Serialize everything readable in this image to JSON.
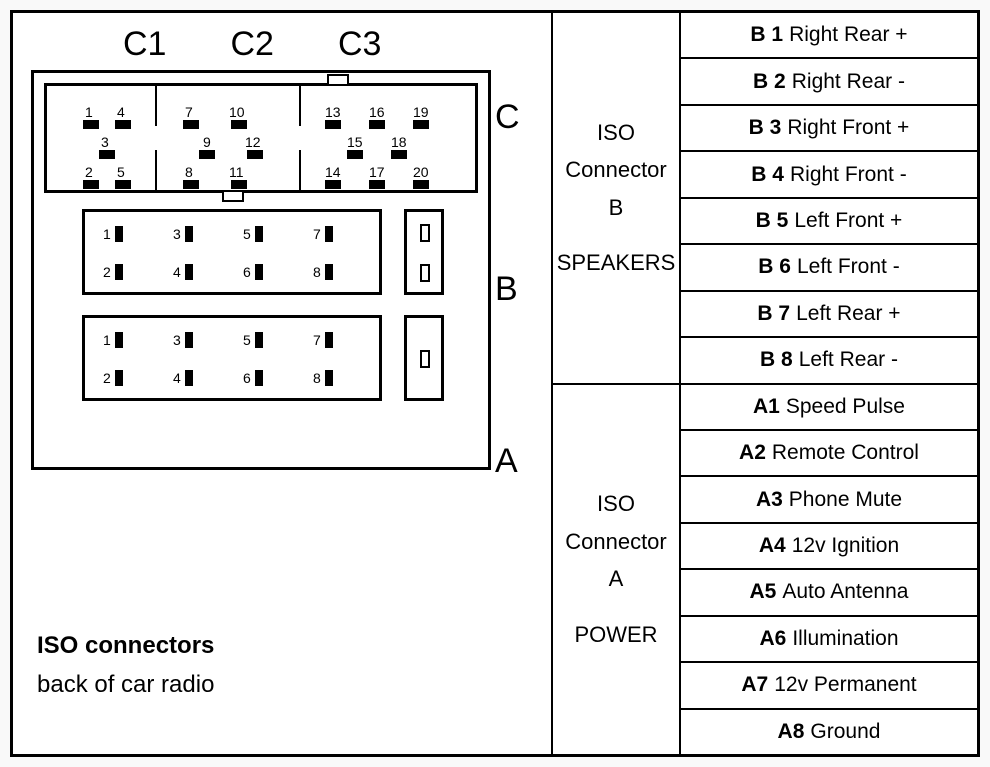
{
  "colors": {
    "background": "#ffffff",
    "line": "#000000",
    "text": "#000000"
  },
  "left": {
    "c_labels": [
      "C1",
      "C2",
      "C3"
    ],
    "side_labels": [
      "C",
      "B",
      "A"
    ],
    "footer_line1": "ISO connectors",
    "footer_line2": "back of car radio",
    "connector_c": {
      "columns": [
        {
          "group": "C1",
          "top_pins": [
            "1",
            "4"
          ],
          "mid_pin": "3",
          "bot_pins": [
            "2",
            "5"
          ]
        },
        {
          "group": "C2",
          "top_pins": [
            "7",
            "10"
          ],
          "mid_pins": [
            "9",
            "12"
          ],
          "bot_pins": [
            "8",
            "11"
          ]
        },
        {
          "group": "C3",
          "top_pins": [
            "13",
            "16",
            "19"
          ],
          "mid_pins": [
            "15",
            "18"
          ],
          "bot_pins": [
            "14",
            "17",
            "20"
          ]
        }
      ]
    },
    "connector_b_pins": [
      "1",
      "2",
      "3",
      "4",
      "5",
      "6",
      "7",
      "8"
    ],
    "connector_a_pins": [
      "1",
      "2",
      "3",
      "4",
      "5",
      "6",
      "7",
      "8"
    ]
  },
  "right": {
    "sections": [
      {
        "title_lines": [
          "ISO",
          "Connector",
          "B",
          "",
          "SPEAKERS"
        ],
        "pins": [
          {
            "id": "B 1",
            "label": "Right Rear +"
          },
          {
            "id": "B 2",
            "label": "Right Rear -"
          },
          {
            "id": "B 3",
            "label": "Right Front +"
          },
          {
            "id": "B 4",
            "label": "Right Front -"
          },
          {
            "id": "B 5",
            "label": "Left Front +"
          },
          {
            "id": "B 6",
            "label": "Left Front -"
          },
          {
            "id": "B 7",
            "label": "Left Rear +"
          },
          {
            "id": "B 8",
            "label": "Left Rear -"
          }
        ]
      },
      {
        "title_lines": [
          "ISO",
          "Connector",
          "A",
          "",
          "POWER"
        ],
        "pins": [
          {
            "id": "A1",
            "label": "Speed Pulse"
          },
          {
            "id": "A2",
            "label": "Remote Control"
          },
          {
            "id": "A3",
            "label": "Phone Mute"
          },
          {
            "id": "A4",
            "label": "12v Ignition"
          },
          {
            "id": "A5",
            "label": "Auto Antenna"
          },
          {
            "id": "A6",
            "label": "Illumination"
          },
          {
            "id": "A7",
            "label": "12v Permanent"
          },
          {
            "id": "A8",
            "label": "Ground"
          }
        ]
      }
    ]
  }
}
